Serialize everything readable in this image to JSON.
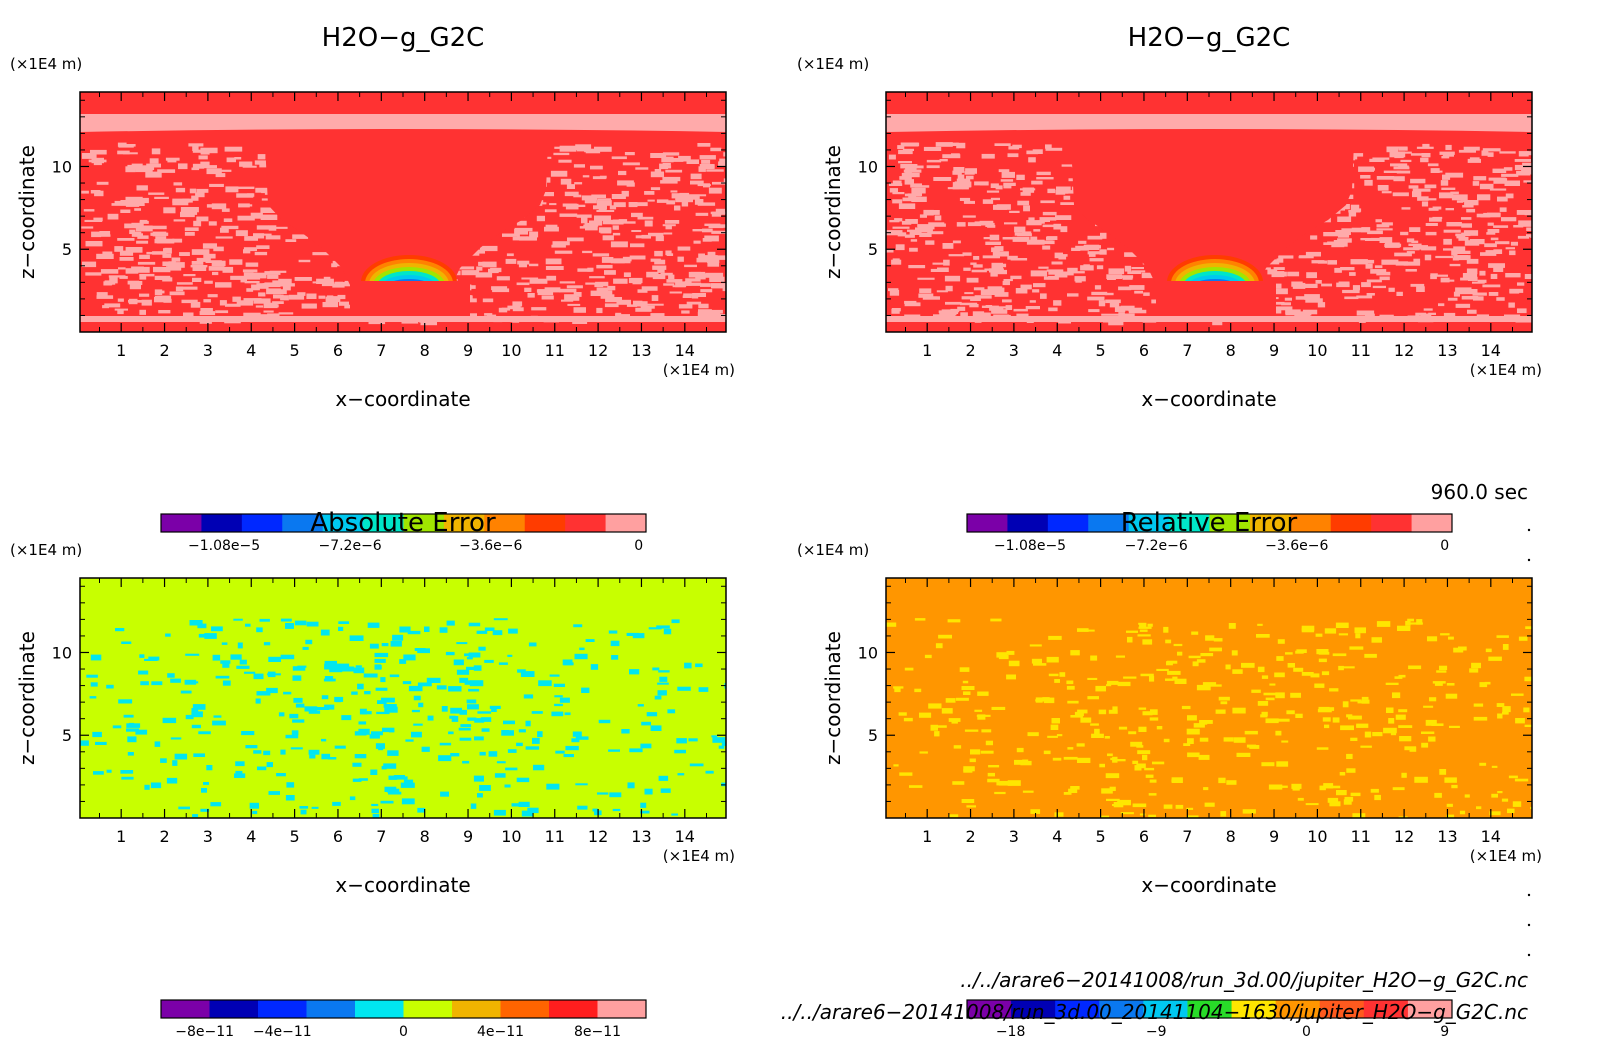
{
  "chart_data": [
    {
      "type": "heatmap",
      "title": "H2O−g_G2C",
      "xlabel": "x−coordinate",
      "ylabel": "z−coordinate",
      "x_unit": "(×1E4 m)",
      "y_unit": "(×1E4 m)",
      "x_ticks": [
        "1",
        "2",
        "3",
        "4",
        "5",
        "6",
        "7",
        "8",
        "9",
        "10",
        "11",
        "12",
        "13",
        "14"
      ],
      "y_ticks": [
        "5",
        "10"
      ],
      "colorbar": {
        "colors": [
          "#7b00a8",
          "#0000b4",
          "#0028ff",
          "#0a78f0",
          "#00c8f0",
          "#00e6c8",
          "#a0e600",
          "#f0b400",
          "#ff8200",
          "#ff3c00",
          "#ff3232",
          "#ffa0a0"
        ],
        "tick_labels": [
          "−1.08e−5",
          "−7.2e−6",
          "−3.6e−6",
          "0"
        ]
      },
      "fill": {
        "background": "#ff3232",
        "speckle": "#ffaaaa"
      }
    },
    {
      "type": "heatmap",
      "title": "H2O−g_G2C",
      "xlabel": "x−coordinate",
      "ylabel": "z−coordinate",
      "x_unit": "(×1E4 m)",
      "y_unit": "(×1E4 m)",
      "x_ticks": [
        "1",
        "2",
        "3",
        "4",
        "5",
        "6",
        "7",
        "8",
        "9",
        "10",
        "11",
        "12",
        "13",
        "14"
      ],
      "y_ticks": [
        "5",
        "10"
      ],
      "colorbar": {
        "colors": [
          "#7b00a8",
          "#0000b4",
          "#0028ff",
          "#0a78f0",
          "#00c8f0",
          "#00e6c8",
          "#a0e600",
          "#f0b400",
          "#ff8200",
          "#ff3c00",
          "#ff3232",
          "#ffa0a0"
        ],
        "tick_labels": [
          "−1.08e−5",
          "−7.2e−6",
          "−3.6e−6",
          "0"
        ]
      },
      "fill": {
        "background": "#ff3232",
        "speckle": "#ffaaaa"
      }
    },
    {
      "type": "heatmap",
      "title": "Absolute Error",
      "xlabel": "x−coordinate",
      "ylabel": "z−coordinate",
      "x_unit": "(×1E4 m)",
      "y_unit": "(×1E4 m)",
      "x_ticks": [
        "1",
        "2",
        "3",
        "4",
        "5",
        "6",
        "7",
        "8",
        "9",
        "10",
        "11",
        "12",
        "13",
        "14"
      ],
      "y_ticks": [
        "5",
        "10"
      ],
      "colorbar": {
        "colors": [
          "#7b00a8",
          "#0000b4",
          "#0028ff",
          "#0a78f0",
          "#00e6f0",
          "#c8ff00",
          "#f0b400",
          "#ff6400",
          "#ff1e1e",
          "#ffa0a0"
        ],
        "tick_labels": [
          "−8e−11",
          "−4e−11",
          "0",
          "4e−11",
          "8e−11"
        ]
      },
      "fill": {
        "background": "#c8ff00",
        "speckle": "#00e6f0"
      }
    },
    {
      "type": "heatmap",
      "title": "Relative Error",
      "xlabel": "x−coordinate",
      "ylabel": "z−coordinate",
      "x_unit": "(×1E4 m)",
      "y_unit": "(×1E4 m)",
      "x_ticks": [
        "1",
        "2",
        "3",
        "4",
        "5",
        "6",
        "7",
        "8",
        "9",
        "10",
        "11",
        "12",
        "13",
        "14"
      ],
      "y_ticks": [
        "5",
        "10"
      ],
      "colorbar": {
        "colors": [
          "#7b00a8",
          "#0000b4",
          "#0028ff",
          "#0a78f0",
          "#00c8f0",
          "#28dc28",
          "#ffe600",
          "#ff9600",
          "#ff5a1e",
          "#ff3232",
          "#ffa0a0"
        ],
        "tick_labels": [
          "−18",
          "−9",
          "0",
          "9"
        ]
      },
      "fill": {
        "background": "#ff9600",
        "speckle": "#ffe600"
      }
    }
  ],
  "annotations": {
    "time": "960.0 sec",
    "file1": "../../arare6−20141008/run_3d.00/jupiter_H2O−g_G2C.nc",
    "file2": "../../arare6−20141008/run_3d.00_20141104−1630/jupiter_H2O−g_G2C.nc"
  }
}
